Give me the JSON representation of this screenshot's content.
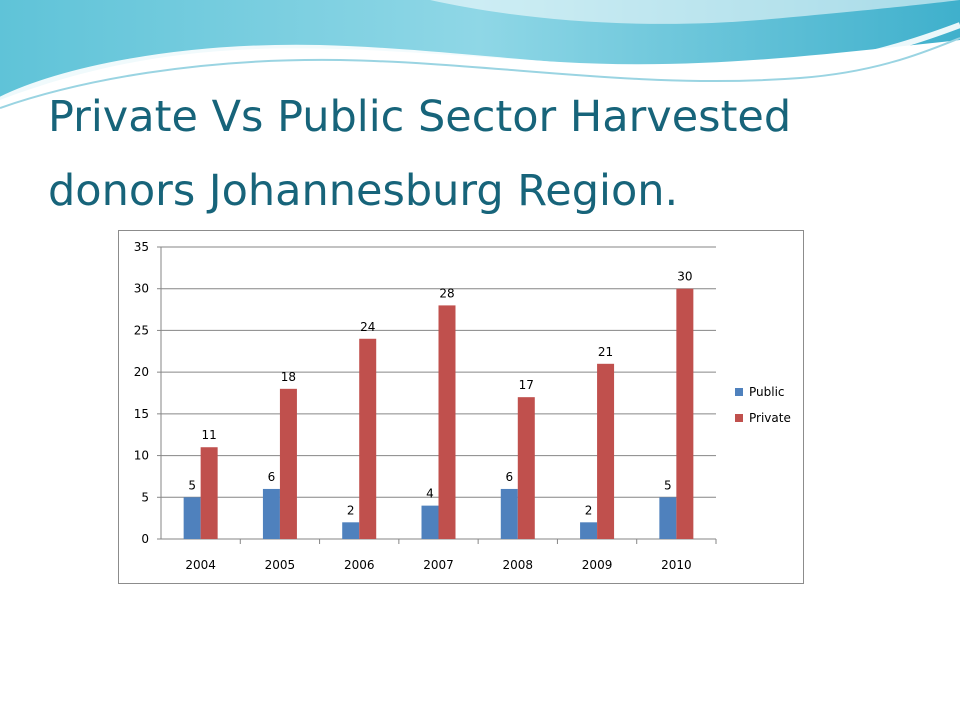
{
  "slide": {
    "title_line1": "Private Vs Public Sector Harvested",
    "title_line2": "donors Johannesburg Region."
  },
  "colors": {
    "title": "#17647a",
    "public": "#4f81bd",
    "private": "#c0504d",
    "grid": "#868686"
  },
  "chart_data": {
    "type": "bar",
    "categories": [
      "2004",
      "2005",
      "2006",
      "2007",
      "2008",
      "2009",
      "2010"
    ],
    "series": [
      {
        "name": "Public",
        "color": "#4f81bd",
        "values": [
          5,
          6,
          2,
          4,
          6,
          2,
          5
        ]
      },
      {
        "name": "Private",
        "color": "#c0504d",
        "values": [
          11,
          18,
          24,
          28,
          17,
          21,
          30
        ]
      }
    ],
    "title": "",
    "xlabel": "",
    "ylabel": "",
    "ylim": [
      0,
      35
    ],
    "yticks": [
      0,
      5,
      10,
      15,
      20,
      25,
      30,
      35
    ],
    "grid": true,
    "legend_position": "right",
    "data_labels": true
  }
}
